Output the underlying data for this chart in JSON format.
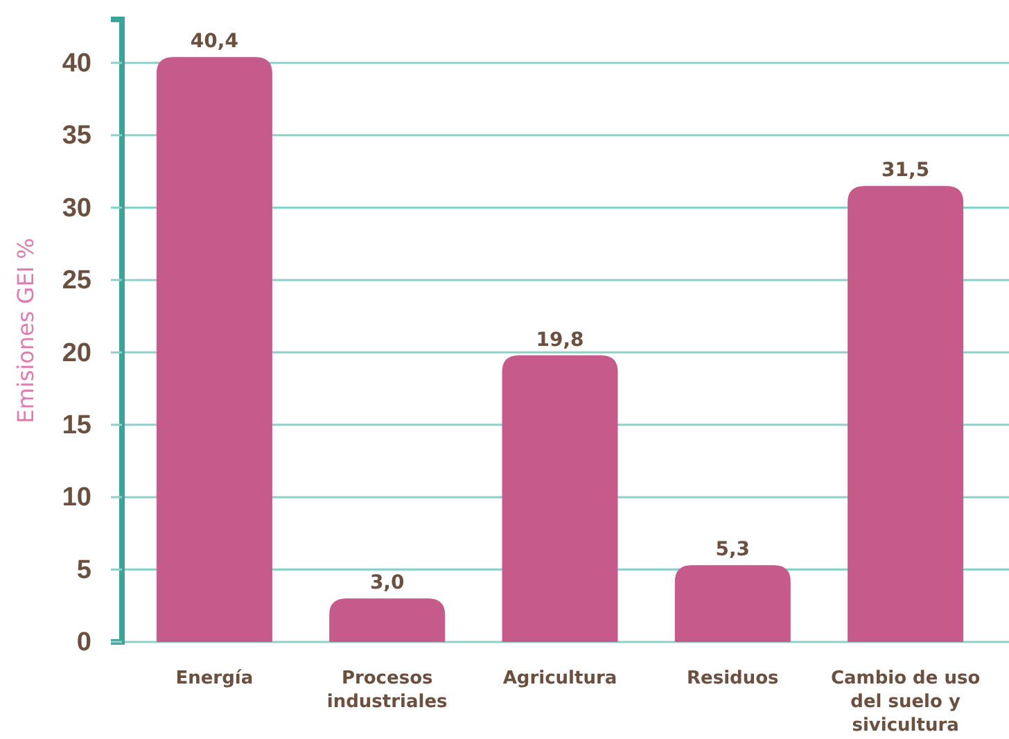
{
  "chart_data": {
    "type": "bar",
    "ylabel": "Emisiones GEI %",
    "categories": [
      "Energía",
      "Procesos industriales",
      "Agricultura",
      "Residuos",
      "Cambio de uso del suelo y sivicultura"
    ],
    "values": [
      40.4,
      3.0,
      19.8,
      5.3,
      31.5
    ],
    "value_labels": [
      "40,4",
      "3,0",
      "19,8",
      "5,3",
      "31,5"
    ],
    "color": "#c55a8b",
    "ylim": [
      0,
      43
    ],
    "yticks": [
      0,
      5,
      10,
      15,
      20,
      25,
      30,
      35,
      40
    ],
    "grid": "y"
  }
}
